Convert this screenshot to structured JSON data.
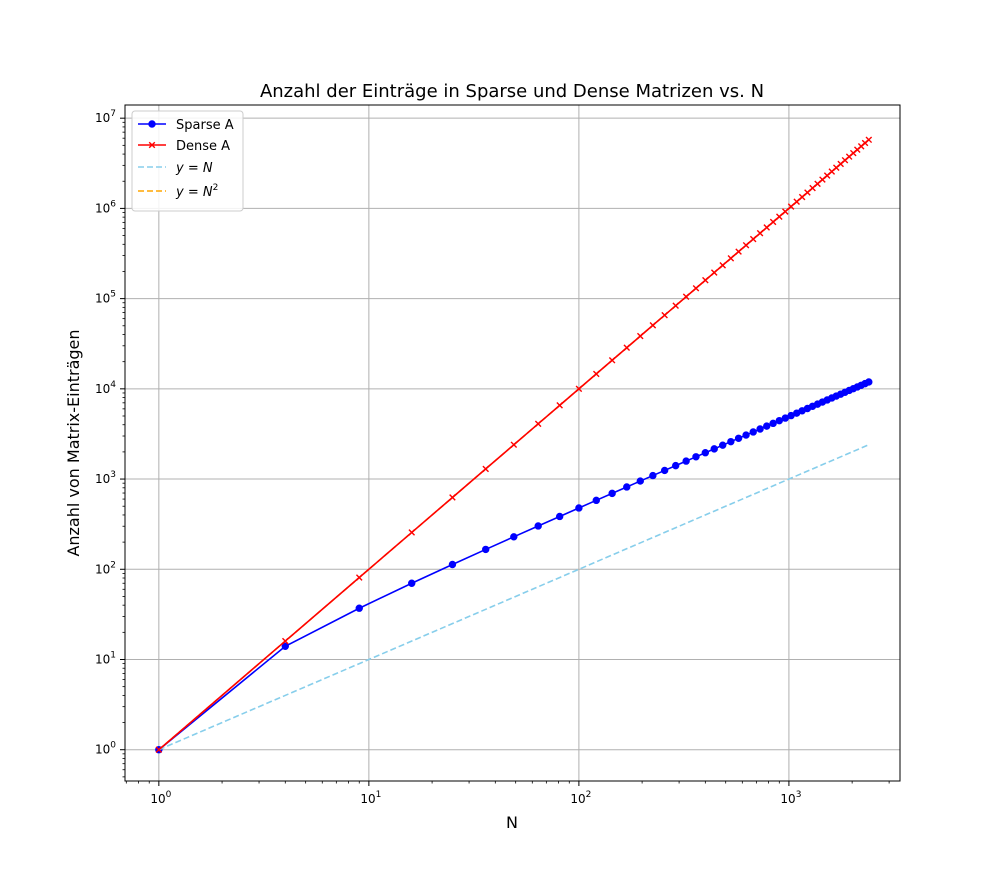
{
  "chart_data": {
    "type": "line",
    "title": "Anzahl der Einträge in Sparse und Dense Matrizen vs. N",
    "xlabel": "N",
    "ylabel": "Anzahl von Matrix-Einträgen",
    "xscale": "log",
    "yscale": "log",
    "xlim": [
      0.69,
      3380
    ],
    "ylim": [
      0.45,
      14000000
    ],
    "grid": true,
    "legend_position": "top-left",
    "x_ticks": [
      {
        "value": 1,
        "base": "10",
        "exp": "0"
      },
      {
        "value": 10,
        "base": "10",
        "exp": "1"
      },
      {
        "value": 100,
        "base": "10",
        "exp": "2"
      },
      {
        "value": 1000,
        "base": "10",
        "exp": "3"
      }
    ],
    "y_ticks": [
      {
        "value": 1,
        "base": "10",
        "exp": "0"
      },
      {
        "value": 10,
        "base": "10",
        "exp": "1"
      },
      {
        "value": 100,
        "base": "10",
        "exp": "2"
      },
      {
        "value": 1000,
        "base": "10",
        "exp": "3"
      },
      {
        "value": 10000,
        "base": "10",
        "exp": "4"
      },
      {
        "value": 100000,
        "base": "10",
        "exp": "5"
      },
      {
        "value": 1000000,
        "base": "10",
        "exp": "6"
      },
      {
        "value": 10000000,
        "base": "10",
        "exp": "7"
      }
    ],
    "x": [
      1,
      4,
      9,
      16,
      25,
      36,
      49,
      64,
      81,
      100,
      121,
      144,
      169,
      196,
      225,
      256,
      289,
      324,
      361,
      400,
      441,
      484,
      529,
      576,
      625,
      676,
      729,
      784,
      841,
      900,
      961,
      1024,
      1089,
      1156,
      1225,
      1296,
      1369,
      1444,
      1521,
      1600,
      1681,
      1764,
      1849,
      1936,
      2025,
      2116,
      2209,
      2304,
      2401
    ],
    "series": [
      {
        "name": "Sparse A",
        "color": "#0000ff",
        "marker": "circle",
        "values": [
          1,
          14,
          37,
          70,
          113,
          166,
          229,
          302,
          385,
          478,
          581,
          694,
          817,
          950,
          1093,
          1246,
          1409,
          1582,
          1765,
          1958,
          2161,
          2374,
          2597,
          2830,
          3073,
          3326,
          3589,
          3862,
          4145,
          4438,
          4741,
          5054,
          5377,
          5710,
          6053,
          6406,
          6769,
          7142,
          7525,
          7918,
          8321,
          8734,
          9157,
          9590,
          10033,
          10486,
          10949,
          11422,
          11905
        ]
      },
      {
        "name": "Dense A",
        "color": "#ff0000",
        "marker": "x",
        "values": [
          1,
          16,
          81,
          256,
          625,
          1296,
          2401,
          4096,
          6561,
          10000,
          14641,
          20736,
          28561,
          38416,
          50625,
          65536,
          83521,
          104976,
          130321,
          160000,
          194481,
          234256,
          279841,
          331776,
          390625,
          456976,
          531441,
          614656,
          707281,
          810000,
          923521,
          1048576,
          1185921,
          1336336,
          1500625,
          1679616,
          1874161,
          2085136,
          2313441,
          2560000,
          2825761,
          3111696,
          3418801,
          3748096,
          4100625,
          4477456,
          4879681,
          5308416,
          5764801
        ]
      },
      {
        "name_parts": [
          {
            "t": "y",
            "i": true
          },
          {
            "t": " = ",
            "i": false
          },
          {
            "t": "N",
            "i": true
          }
        ],
        "color": "#87ceeb",
        "dashed": true,
        "x": [
          1,
          2401
        ],
        "values": [
          1,
          2401
        ]
      },
      {
        "name_parts": [
          {
            "t": "y",
            "i": true
          },
          {
            "t": " = ",
            "i": false
          },
          {
            "t": "N",
            "i": true
          }
        ],
        "name_sup": "2",
        "color": "#ffa500",
        "dashed": true,
        "x": [
          1,
          2401
        ],
        "values": [
          1,
          5764801
        ]
      }
    ]
  }
}
